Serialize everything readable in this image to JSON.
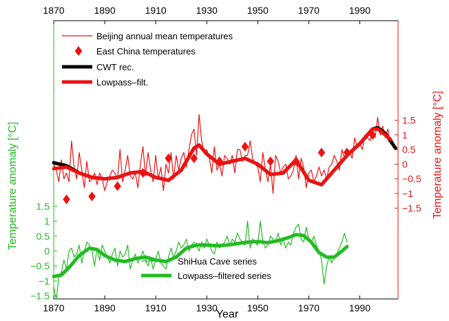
{
  "chart_data": {
    "type": "line",
    "xlabel": "Year",
    "xlim": [
      1870,
      2005
    ],
    "xticks": [
      "1870",
      "1890",
      "1910",
      "1930",
      "1950",
      "1970",
      "1990"
    ],
    "left_axis": {
      "label": "Temperature anomaly [°C]",
      "color": "#22bb22",
      "range": [
        -1.6,
        7.7
      ],
      "ticks": [
        -1.5,
        -1,
        -0.5,
        0,
        0.5,
        1,
        1.5
      ],
      "tick_labels": [
        "−1.5",
        "−1",
        "−0.5",
        "0",
        "0.5",
        "1",
        "1.5"
      ]
    },
    "right_axis": {
      "label": "Temperature anomaly [°C]",
      "color": "#ee1111",
      "range": [
        -4.6,
        4.9
      ],
      "ticks": [
        -1.5,
        -1,
        -0.5,
        0,
        0.5,
        1,
        1.5
      ],
      "tick_labels": [
        "−1.5",
        "−1",
        "−0.5",
        "0",
        "0.5",
        "1",
        "1.5"
      ]
    },
    "series": [
      {
        "name": "Beijing annual mean temperatures",
        "axis": "right",
        "color": "#ee1111",
        "style": "thin",
        "x": [
          1870,
          1871,
          1872,
          1873,
          1874,
          1875,
          1876,
          1877,
          1878,
          1879,
          1880,
          1881,
          1882,
          1883,
          1884,
          1885,
          1886,
          1887,
          1888,
          1889,
          1890,
          1891,
          1892,
          1893,
          1894,
          1895,
          1896,
          1897,
          1898,
          1899,
          1900,
          1901,
          1902,
          1903,
          1904,
          1905,
          1906,
          1907,
          1908,
          1909,
          1910,
          1911,
          1912,
          1913,
          1914,
          1915,
          1916,
          1917,
          1918,
          1919,
          1920,
          1921,
          1922,
          1923,
          1924,
          1925,
          1926,
          1927,
          1928,
          1929,
          1930,
          1931,
          1932,
          1933,
          1934,
          1935,
          1936,
          1937,
          1938,
          1939,
          1940,
          1941,
          1942,
          1943,
          1944,
          1945,
          1946,
          1947,
          1948,
          1949,
          1950,
          1951,
          1952,
          1953,
          1954,
          1955,
          1956,
          1957,
          1958,
          1959,
          1960,
          1961,
          1962,
          1963,
          1964,
          1965,
          1966,
          1967,
          1968,
          1969,
          1970,
          1971,
          1972,
          1973,
          1974,
          1975,
          1976,
          1977,
          1978,
          1979,
          1980,
          1981,
          1982,
          1983,
          1984,
          1985,
          1986,
          1987,
          1988,
          1989,
          1990,
          1991,
          1992,
          1993,
          1994,
          1995,
          1996,
          1997,
          1998,
          1999,
          2000,
          2001,
          2002,
          2003
        ],
        "values": [
          0.0,
          -0.2,
          -0.6,
          0.15,
          -0.5,
          -0.3,
          -0.6,
          0.8,
          -0.1,
          -0.5,
          0.4,
          -0.2,
          -0.8,
          0.1,
          -0.6,
          -0.5,
          -0.3,
          -0.7,
          -0.3,
          -0.5,
          -0.9,
          -0.6,
          -0.4,
          -0.2,
          -0.3,
          -0.5,
          0.5,
          -0.6,
          -0.2,
          0.3,
          -0.4,
          -0.5,
          -0.3,
          -0.8,
          0.0,
          0.6,
          -0.4,
          0.4,
          -0.2,
          -0.6,
          0.3,
          -0.5,
          -0.1,
          -0.9,
          0.0,
          -0.3,
          0.4,
          -0.5,
          0.3,
          -0.2,
          0.2,
          0.4,
          -0.1,
          0.5,
          1.0,
          1.2,
          0.3,
          1.7,
          0.8,
          0.4,
          0.5,
          0.2,
          -0.3,
          0.6,
          -0.2,
          0.0,
          -0.4,
          0.3,
          0.2,
          0.0,
          0.3,
          -0.3,
          0.5,
          0.5,
          0.1,
          0.3,
          0.3,
          0.8,
          0.2,
          0.0,
          -0.1,
          -0.6,
          0.4,
          -0.2,
          -0.6,
          0.0,
          -1.0,
          0.3,
          0.1,
          -0.3,
          -0.1,
          0.0,
          -0.5,
          -0.4,
          -0.2,
          0.3,
          -0.5,
          0.2,
          -0.1,
          -0.8,
          -0.3,
          -0.2,
          -0.6,
          -0.4,
          -0.1,
          -0.4,
          -0.2,
          -0.5,
          -0.1,
          0.0,
          0.3,
          0.1,
          -0.2,
          0.5,
          0.2,
          0.3,
          0.4,
          0.2,
          0.9,
          0.6,
          0.7,
          0.5,
          1.0,
          0.9,
          0.8,
          1.2,
          0.9,
          1.6,
          1.0,
          1.3,
          0.9,
          1.2,
          0.7,
          0.8
        ]
      },
      {
        "name": "East China temperatures",
        "axis": "right",
        "color": "#ee1111",
        "style": "diamond",
        "x": [
          1875,
          1885,
          1895,
          1905,
          1915,
          1925,
          1935,
          1945,
          1955,
          1965,
          1975,
          1985,
          1995
        ],
        "values": [
          -1.2,
          -1.1,
          -0.75,
          -0.3,
          0.2,
          0.2,
          0.1,
          0.6,
          0.1,
          0.1,
          0.4,
          0.4,
          1.0
        ]
      },
      {
        "name": "CWT rec.",
        "axis": "right",
        "color": "#000000",
        "style": "thick",
        "x": [
          1870,
          1875,
          1880,
          1885,
          1890,
          1895,
          1900,
          1905,
          1910,
          1915,
          1920,
          1925,
          1927,
          1930,
          1935,
          1940,
          1945,
          1950,
          1955,
          1960,
          1965,
          1970,
          1975,
          1980,
          1985,
          1990,
          1995,
          1997,
          2000,
          2004
        ],
        "values": [
          0.05,
          -0.05,
          -0.3,
          -0.45,
          -0.5,
          -0.45,
          -0.3,
          -0.25,
          -0.45,
          -0.55,
          -0.2,
          0.55,
          0.65,
          0.35,
          0.0,
          0.1,
          0.2,
          0.0,
          -0.35,
          -0.3,
          0.15,
          -0.55,
          -0.7,
          -0.2,
          0.3,
          0.7,
          1.2,
          1.25,
          1.05,
          0.55
        ]
      },
      {
        "name": "Lowpass–filt.",
        "axis": "right",
        "color": "#ee1111",
        "style": "thick",
        "x": [
          1870,
          1875,
          1880,
          1885,
          1890,
          1895,
          1900,
          1905,
          1910,
          1915,
          1920,
          1925,
          1927,
          1930,
          1935,
          1940,
          1945,
          1950,
          1955,
          1960,
          1965,
          1970,
          1975,
          1980,
          1985,
          1990,
          1995,
          1997,
          2000,
          2002
        ],
        "values": [
          -0.15,
          -0.1,
          -0.3,
          -0.45,
          -0.5,
          -0.45,
          -0.3,
          -0.25,
          -0.45,
          -0.55,
          -0.2,
          0.55,
          0.65,
          0.35,
          0.0,
          0.1,
          0.2,
          0.0,
          -0.35,
          -0.3,
          0.15,
          -0.55,
          -0.7,
          -0.2,
          0.3,
          0.7,
          1.2,
          1.2,
          1.0,
          0.85
        ]
      },
      {
        "name": "ShiHua Cave series",
        "axis": "left",
        "color": "#22bb22",
        "style": "thin",
        "x": [
          1870,
          1871,
          1872,
          1873,
          1874,
          1875,
          1876,
          1877,
          1878,
          1879,
          1880,
          1881,
          1882,
          1883,
          1884,
          1885,
          1886,
          1887,
          1888,
          1889,
          1890,
          1891,
          1892,
          1893,
          1894,
          1895,
          1896,
          1897,
          1898,
          1899,
          1900,
          1901,
          1902,
          1903,
          1904,
          1905,
          1906,
          1907,
          1908,
          1909,
          1910,
          1911,
          1912,
          1913,
          1914,
          1915,
          1916,
          1917,
          1918,
          1919,
          1920,
          1921,
          1922,
          1923,
          1924,
          1925,
          1926,
          1927,
          1928,
          1929,
          1930,
          1931,
          1932,
          1933,
          1934,
          1935,
          1936,
          1937,
          1938,
          1939,
          1940,
          1941,
          1942,
          1943,
          1944,
          1945,
          1946,
          1947,
          1948,
          1949,
          1950,
          1951,
          1952,
          1953,
          1954,
          1955,
          1956,
          1957,
          1958,
          1959,
          1960,
          1961,
          1962,
          1963,
          1964,
          1965,
          1966,
          1967,
          1968,
          1969,
          1970,
          1971,
          1972,
          1973,
          1974,
          1975,
          1976,
          1977,
          1978,
          1979,
          1980,
          1981,
          1982,
          1983,
          1984,
          1985
        ],
        "values": [
          -1.2,
          -1.6,
          -0.9,
          -0.7,
          -0.3,
          -0.6,
          0.0,
          0.1,
          -0.2,
          -0.1,
          0.2,
          -0.4,
          0.0,
          0.3,
          0.2,
          0.0,
          -0.5,
          0.1,
          -0.3,
          0.2,
          0.0,
          -0.2,
          -0.4,
          -0.1,
          0.1,
          -0.5,
          0.0,
          -0.2,
          -0.1,
          0.2,
          -0.6,
          -0.3,
          -0.1,
          -0.4,
          -0.2,
          0.0,
          -0.3,
          -0.5,
          -0.2,
          -0.6,
          -0.3,
          0.0,
          -0.4,
          -0.5,
          -0.6,
          -0.2,
          0.1,
          -0.2,
          0.0,
          0.3,
          0.1,
          0.2,
          0.4,
          0.0,
          0.2,
          0.3,
          0.2,
          0.0,
          0.3,
          0.1,
          0.4,
          0.2,
          0.0,
          -0.1,
          0.3,
          0.1,
          0.2,
          0.3,
          0.5,
          0.2,
          0.4,
          0.3,
          0.6,
          0.4,
          0.3,
          0.2,
          1.0,
          0.1,
          0.4,
          0.3,
          0.2,
          1.0,
          0.3,
          0.1,
          0.2,
          0.5,
          0.4,
          0.3,
          0.6,
          0.2,
          0.4,
          0.1,
          0.3,
          0.2,
          0.6,
          0.8,
          0.9,
          0.4,
          0.3,
          0.8,
          0.4,
          0.3,
          0.5,
          0.2,
          0.0,
          -0.3,
          -1.1,
          -0.5,
          -0.2,
          -0.4,
          -0.2,
          -0.1,
          0.1,
          0.3,
          0.6,
          0.3
        ]
      },
      {
        "name": "Lowpass–filtered series",
        "axis": "left",
        "color": "#22bb22",
        "style": "thick",
        "x": [
          1870,
          1873,
          1876,
          1880,
          1884,
          1887,
          1890,
          1894,
          1898,
          1902,
          1906,
          1910,
          1914,
          1918,
          1922,
          1926,
          1930,
          1934,
          1938,
          1942,
          1946,
          1950,
          1954,
          1958,
          1962,
          1965,
          1968,
          1971,
          1974,
          1977,
          1980,
          1983,
          1985
        ],
        "values": [
          -0.85,
          -0.8,
          -0.55,
          -0.15,
          0.1,
          0.05,
          -0.15,
          -0.3,
          -0.35,
          -0.25,
          -0.2,
          -0.3,
          -0.35,
          -0.2,
          0.1,
          0.2,
          0.2,
          0.18,
          0.2,
          0.25,
          0.3,
          0.32,
          0.28,
          0.35,
          0.45,
          0.55,
          0.52,
          0.3,
          -0.05,
          -0.2,
          -0.2,
          0.0,
          0.15
        ]
      }
    ]
  }
}
